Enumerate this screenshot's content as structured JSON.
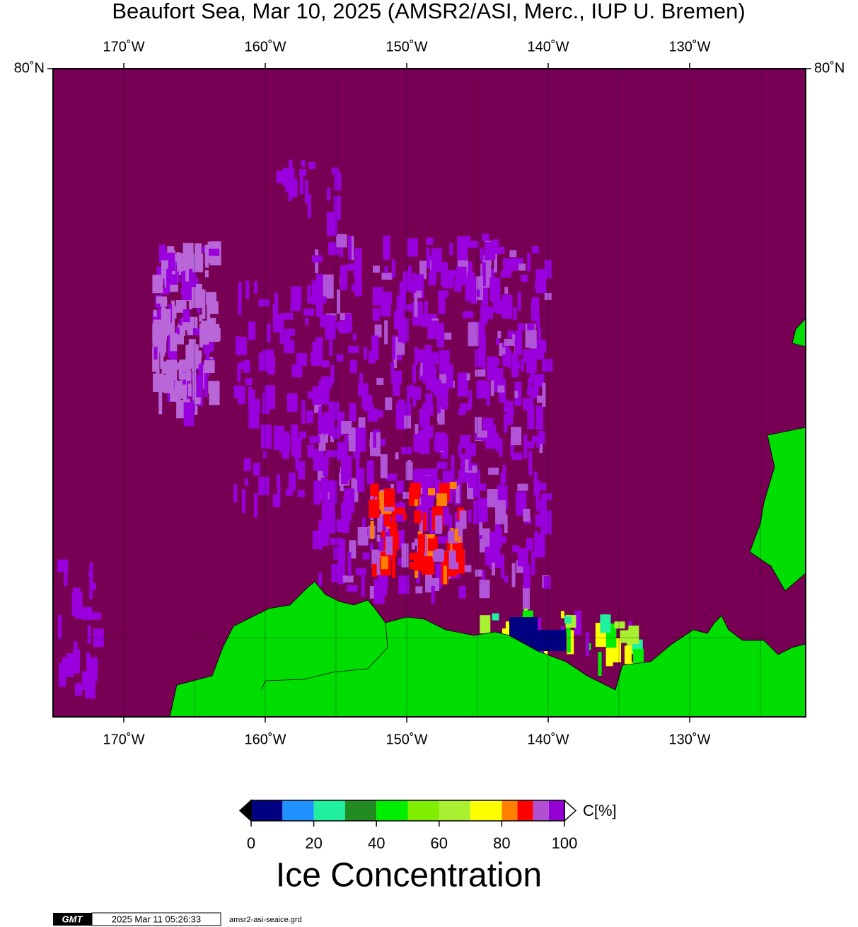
{
  "chart_data": {
    "type": "map",
    "title": "Beaufort Sea, Mar 10, 2025 (AMSR2/ASI, Merc., IUP U. Bremen)",
    "xlim": [
      -175,
      -121.8
    ],
    "ylim": [
      68,
      80
    ],
    "xticks": [
      {
        "value": -170,
        "label": "170˚W"
      },
      {
        "value": -160,
        "label": "160˚W"
      },
      {
        "value": -150,
        "label": "150˚W"
      },
      {
        "value": -140,
        "label": "140˚W"
      },
      {
        "value": -130,
        "label": "130˚W"
      }
    ],
    "x_grid": [
      -170,
      -165,
      -160,
      -155,
      -150,
      -145,
      -140,
      -135,
      -130,
      -125
    ],
    "yticks": [
      {
        "value": 80,
        "label": "80˚N"
      }
    ],
    "y_grid": [
      70
    ],
    "ocean_color": "#770055",
    "land_color": "#00dd00",
    "colorbar": {
      "label": "C[%]",
      "title": "Ice Concentration",
      "lim": [
        0,
        100
      ],
      "bounds": [
        0,
        10,
        20,
        30,
        40,
        50,
        60,
        70,
        80,
        85,
        90,
        95,
        100
      ],
      "colors": [
        "#000080",
        "#1e90ff",
        "#20f0a0",
        "#228b22",
        "#00ee00",
        "#80ee00",
        "#a8f030",
        "#ffff00",
        "#ff8000",
        "#ff0000",
        "#b050d0",
        "#9400d3"
      ],
      "ticks": [
        0,
        20,
        40,
        60,
        80,
        100
      ]
    },
    "footer": {
      "logo": "GMT",
      "timestamp": "2025 Mar 11 05:26:33",
      "file": "amsr2-asi-seaice.grd"
    }
  }
}
